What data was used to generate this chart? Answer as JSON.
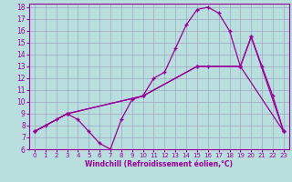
{
  "xlabel": "Windchill (Refroidissement éolien,°C)",
  "background_color": "#b8dede",
  "line_color": "#990099",
  "grid_color": "#9999bb",
  "xlim": [
    -0.5,
    23.5
  ],
  "ylim": [
    6,
    18.3
  ],
  "xticks": [
    0,
    1,
    2,
    3,
    4,
    5,
    6,
    7,
    8,
    9,
    10,
    11,
    12,
    13,
    14,
    15,
    16,
    17,
    18,
    19,
    20,
    21,
    22,
    23
  ],
  "yticks": [
    6,
    7,
    8,
    9,
    10,
    11,
    12,
    13,
    14,
    15,
    16,
    17,
    18
  ],
  "line1_x": [
    0,
    1,
    2,
    3,
    4,
    5,
    6,
    7,
    8,
    9,
    10,
    11,
    12,
    13,
    14,
    15,
    16,
    17,
    18,
    19,
    20,
    21,
    22,
    23
  ],
  "line1_y": [
    7.5,
    8.0,
    8.5,
    9.0,
    8.5,
    7.5,
    6.5,
    6.0,
    8.5,
    10.2,
    10.5,
    12.0,
    12.5,
    14.5,
    16.5,
    17.8,
    18.0,
    17.5,
    16.0,
    13.0,
    15.5,
    13.0,
    10.5,
    7.5
  ],
  "line2_x": [
    0,
    3,
    10,
    15,
    16,
    19,
    20,
    23
  ],
  "line2_y": [
    7.5,
    9.0,
    10.5,
    13.0,
    13.0,
    13.0,
    15.5,
    7.5
  ],
  "line3_x": [
    0,
    3,
    10,
    15,
    19,
    23
  ],
  "line3_y": [
    7.5,
    9.0,
    10.5,
    13.0,
    13.0,
    7.5
  ],
  "marker": "+",
  "markersize": 3.5,
  "linewidth": 0.9
}
